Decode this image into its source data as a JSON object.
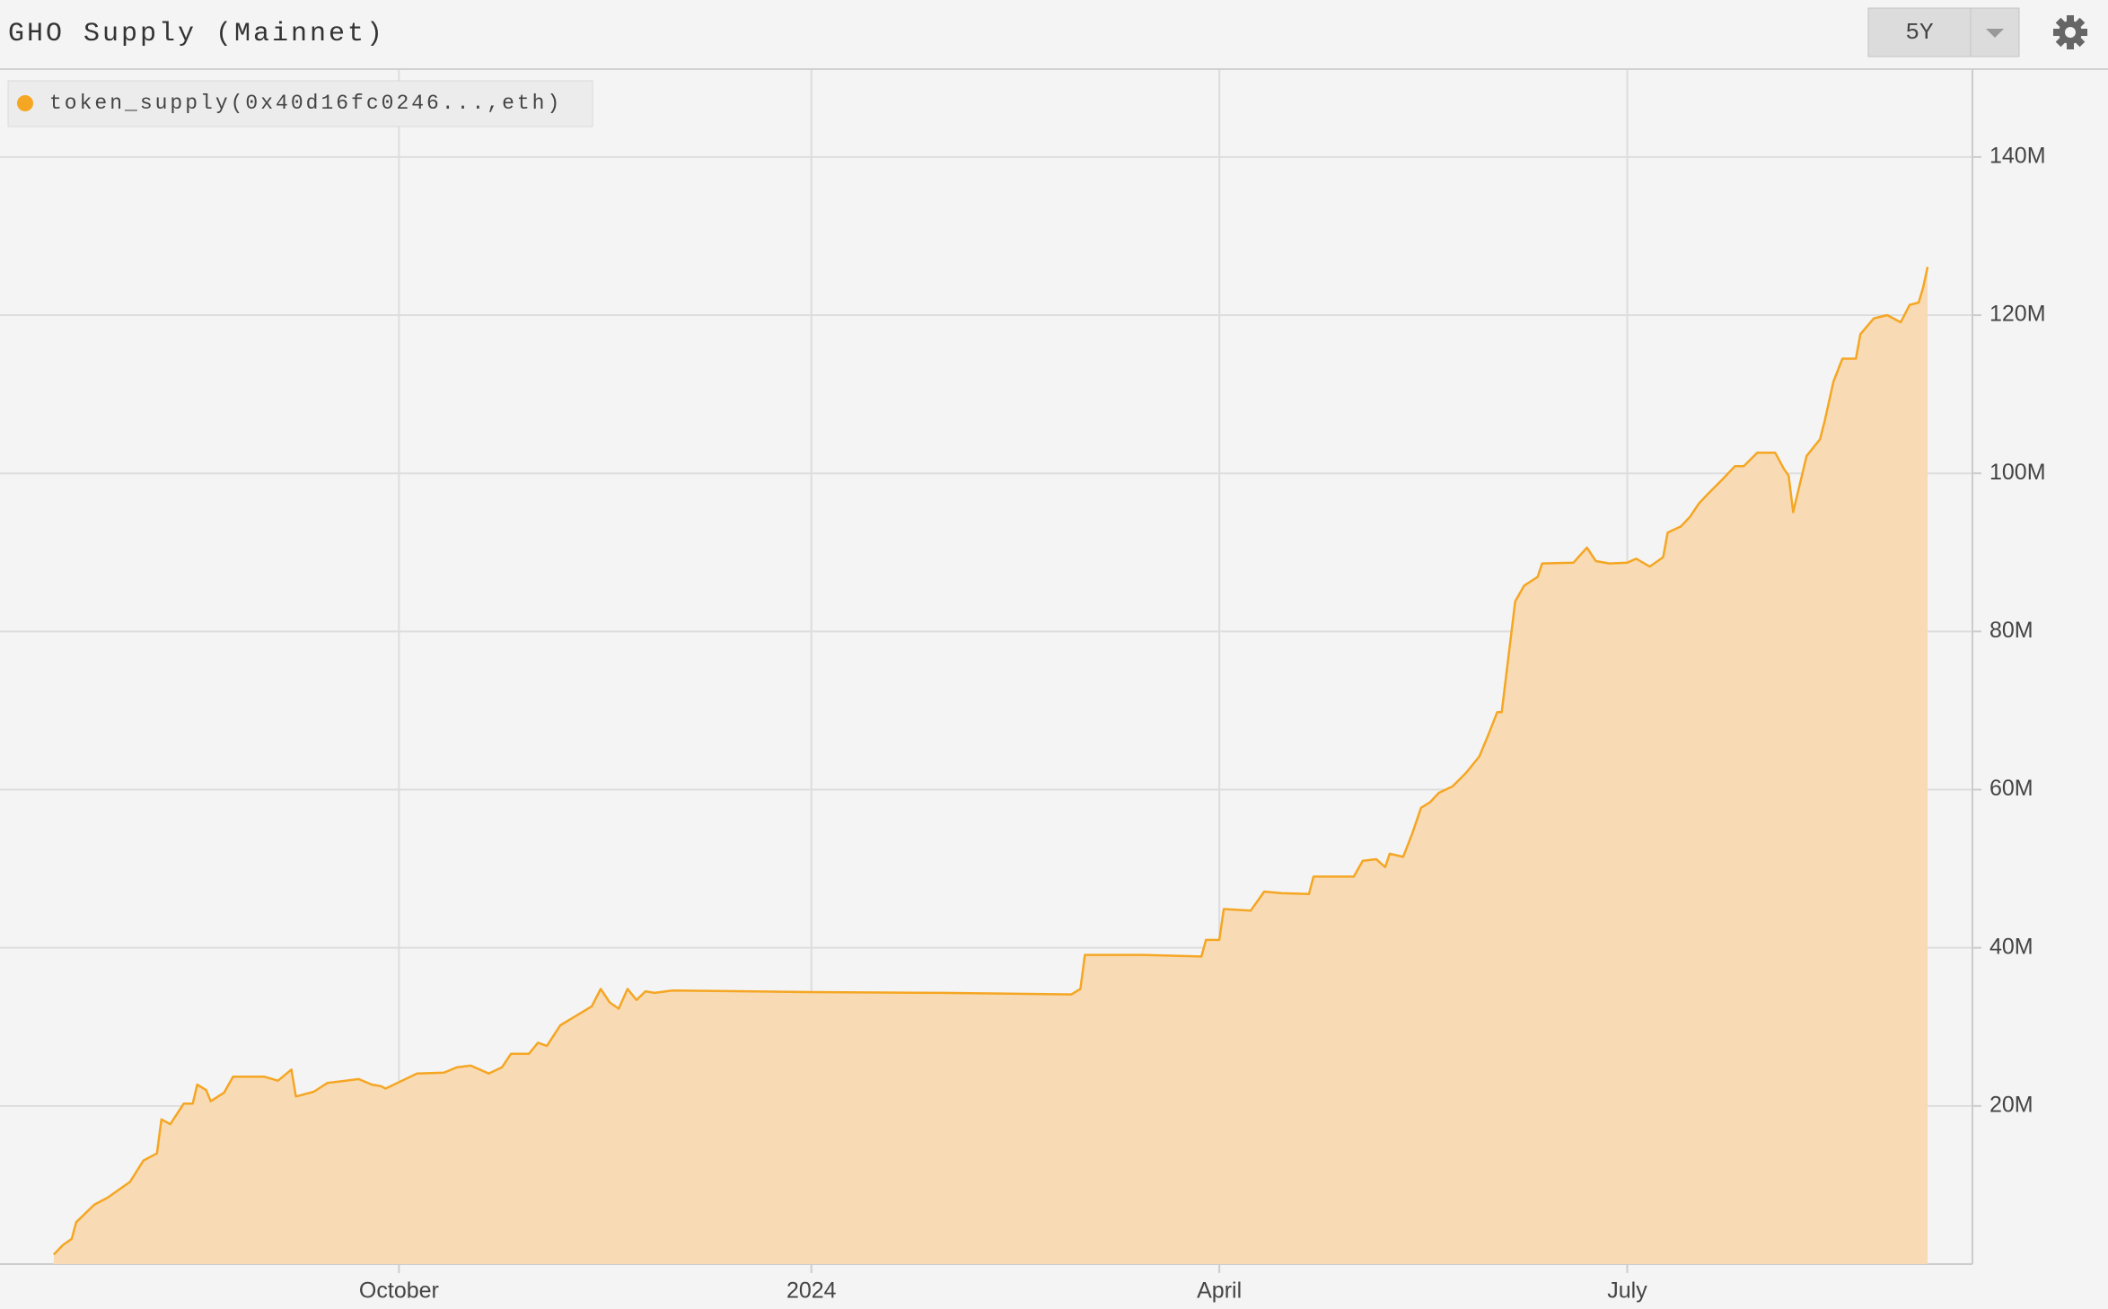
{
  "header": {
    "title": "GHO Supply (Mainnet)",
    "range_button": "5Y"
  },
  "chart_data": {
    "type": "area",
    "x": [
      "2023-07-16",
      "2023-07-18",
      "2023-07-20",
      "2023-07-21",
      "2023-07-25",
      "2023-07-28",
      "2023-08-02",
      "2023-08-05",
      "2023-08-08",
      "2023-08-09",
      "2023-08-11",
      "2023-08-14",
      "2023-08-16",
      "2023-08-17",
      "2023-08-19",
      "2023-08-20",
      "2023-08-23",
      "2023-08-25",
      "2023-09-01",
      "2023-09-04",
      "2023-09-07",
      "2023-09-08",
      "2023-09-12",
      "2023-09-15",
      "2023-09-22",
      "2023-09-25",
      "2023-09-27",
      "2023-09-28",
      "2023-10-01",
      "2023-10-05",
      "2023-10-11",
      "2023-10-14",
      "2023-10-17",
      "2023-10-21",
      "2023-10-24",
      "2023-10-26",
      "2023-10-30",
      "2023-11-01",
      "2023-11-03",
      "2023-11-06",
      "2023-11-11",
      "2023-11-13",
      "2023-11-15",
      "2023-11-17",
      "2023-11-19",
      "2023-11-21",
      "2023-11-23",
      "2023-11-25",
      "2023-11-27",
      "2023-12-01",
      "2023-12-17",
      "2024-01-01",
      "2024-01-30",
      "2024-02-28",
      "2024-03-01",
      "2024-03-02",
      "2024-03-15",
      "2024-03-28",
      "2024-03-29",
      "2024-04-01",
      "2024-04-02",
      "2024-04-08",
      "2024-04-11",
      "2024-04-15",
      "2024-04-21",
      "2024-04-22",
      "2024-05-01",
      "2024-05-03",
      "2024-05-06",
      "2024-05-08",
      "2024-05-09",
      "2024-05-12",
      "2024-05-14",
      "2024-05-16",
      "2024-05-18",
      "2024-05-20",
      "2024-05-23",
      "2024-05-26",
      "2024-05-29",
      "2024-05-31",
      "2024-06-02",
      "2024-06-03",
      "2024-06-06",
      "2024-06-08",
      "2024-06-11",
      "2024-06-12",
      "2024-06-19",
      "2024-06-22",
      "2024-06-24",
      "2024-06-27",
      "2024-07-01",
      "2024-07-03",
      "2024-07-06",
      "2024-07-09",
      "2024-07-10",
      "2024-07-13",
      "2024-07-15",
      "2024-07-17",
      "2024-07-19",
      "2024-07-22",
      "2024-07-25",
      "2024-07-27",
      "2024-07-30",
      "2024-08-03",
      "2024-08-05",
      "2024-08-06",
      "2024-08-07",
      "2024-08-10",
      "2024-08-13",
      "2024-08-14",
      "2024-08-16",
      "2024-08-18",
      "2024-08-21",
      "2024-08-22",
      "2024-08-25",
      "2024-08-28",
      "2024-08-31",
      "2024-09-02",
      "2024-09-04",
      "2024-09-05",
      "2024-09-06"
    ],
    "series": [
      {
        "name": "token_supply(0x40d16fc0246...,eth)",
        "color": "#f5a623",
        "fill": "#f8dbb5",
        "values": [
          1.2,
          2.4,
          3.2,
          5.3,
          7.5,
          8.4,
          10.4,
          13.1,
          14.0,
          18.3,
          17.7,
          20.3,
          20.3,
          22.7,
          22.0,
          20.6,
          21.7,
          23.7,
          23.7,
          23.2,
          24.6,
          21.2,
          21.8,
          22.9,
          23.4,
          22.7,
          22.5,
          22.2,
          23.0,
          24.1,
          24.2,
          24.9,
          25.1,
          24.1,
          24.9,
          26.6,
          26.6,
          28.0,
          27.6,
          30.2,
          31.9,
          32.6,
          34.8,
          33.1,
          32.3,
          34.8,
          33.4,
          34.5,
          34.3,
          34.6,
          34.5,
          34.4,
          34.3,
          34.1,
          34.8,
          39.1,
          39.1,
          38.9,
          41.0,
          41.0,
          44.9,
          44.7,
          47.1,
          46.9,
          46.8,
          49.0,
          49.0,
          51.0,
          51.2,
          50.2,
          51.9,
          51.5,
          54.4,
          57.7,
          58.4,
          59.6,
          60.4,
          62.1,
          64.2,
          66.9,
          69.8,
          69.8,
          83.8,
          85.8,
          86.9,
          88.6,
          88.7,
          90.6,
          88.9,
          88.6,
          88.7,
          89.2,
          88.2,
          89.4,
          92.5,
          93.3,
          94.5,
          96.2,
          97.4,
          99.1,
          100.9,
          100.9,
          102.6,
          102.6,
          100.5,
          99.7,
          95.1,
          102.2,
          104.3,
          106.5,
          111.6,
          114.5,
          114.5,
          117.6,
          119.6,
          120.0,
          119.1,
          121.3,
          121.6,
          123.5,
          126.1
        ]
      }
    ],
    "xlim": [
      "2023-07-04",
      "2024-09-16"
    ],
    "xticks": [
      {
        "value": "2023-10-01",
        "label": "October"
      },
      {
        "value": "2024-01-01",
        "label": "2024"
      },
      {
        "value": "2024-04-01",
        "label": "April"
      },
      {
        "value": "2024-07-01",
        "label": "July"
      }
    ],
    "ylim": [
      0,
      151
    ],
    "yticks": [
      {
        "value": 20,
        "label": "20M"
      },
      {
        "value": 40,
        "label": "40M"
      },
      {
        "value": 60,
        "label": "60M"
      },
      {
        "value": 80,
        "label": "80M"
      },
      {
        "value": 100,
        "label": "100M"
      },
      {
        "value": 120,
        "label": "120M"
      },
      {
        "value": 140,
        "label": "140M"
      }
    ],
    "grid": true,
    "legend": "top-left"
  }
}
